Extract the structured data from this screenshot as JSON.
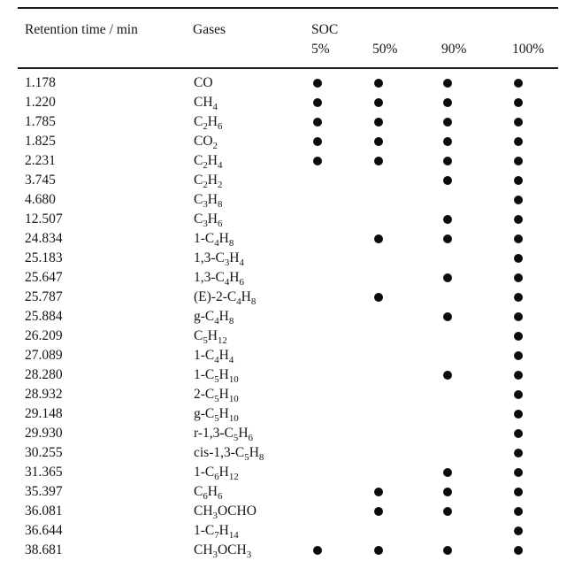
{
  "table": {
    "headers": {
      "retention": "Retention time / min",
      "gases": "Gases",
      "soc": "SOC",
      "soc_levels": [
        "5%",
        "50%",
        "90%",
        "100%"
      ]
    },
    "dot_symbol": "●",
    "text_color": "#161616",
    "rule_color": "#1c1c1c",
    "background_color": "#ffffff",
    "rows": [
      {
        "rt": "1.178",
        "gas": "CO",
        "soc": [
          1,
          1,
          1,
          1
        ]
      },
      {
        "rt": "1.220",
        "gas": "CH_4",
        "soc": [
          1,
          1,
          1,
          1
        ]
      },
      {
        "rt": "1.785",
        "gas": "C_2H_6",
        "soc": [
          1,
          1,
          1,
          1
        ]
      },
      {
        "rt": "1.825",
        "gas": "CO_2",
        "soc": [
          1,
          1,
          1,
          1
        ]
      },
      {
        "rt": "2.231",
        "gas": "C_2H_4",
        "soc": [
          1,
          1,
          1,
          1
        ]
      },
      {
        "rt": "3.745",
        "gas": "C_2H_2",
        "soc": [
          0,
          0,
          1,
          1
        ]
      },
      {
        "rt": "4.680",
        "gas": "C_3H_8",
        "soc": [
          0,
          0,
          0,
          1
        ]
      },
      {
        "rt": "12.507",
        "gas": "C_3H_6",
        "soc": [
          0,
          0,
          1,
          1
        ]
      },
      {
        "rt": "24.834",
        "gas": "1-C_4H_8",
        "soc": [
          0,
          1,
          1,
          1
        ]
      },
      {
        "rt": "25.183",
        "gas": "1,3-C_3H_4",
        "soc": [
          0,
          0,
          0,
          1
        ]
      },
      {
        "rt": "25.647",
        "gas": "1,3-C_4H_6",
        "soc": [
          0,
          0,
          1,
          1
        ]
      },
      {
        "rt": "25.787",
        "gas": "(E)-2-C_4H_8",
        "soc": [
          0,
          1,
          0,
          1
        ]
      },
      {
        "rt": "25.884",
        "gas": "g-C_4H_8",
        "soc": [
          0,
          0,
          1,
          1
        ]
      },
      {
        "rt": "26.209",
        "gas": "C_5H_12",
        "soc": [
          0,
          0,
          0,
          1
        ]
      },
      {
        "rt": "27.089",
        "gas": "1-C_4H_4",
        "soc": [
          0,
          0,
          0,
          1
        ]
      },
      {
        "rt": "28.280",
        "gas": "1-C_5H_10",
        "soc": [
          0,
          0,
          1,
          1
        ]
      },
      {
        "rt": "28.932",
        "gas": "2-C_5H_10",
        "soc": [
          0,
          0,
          0,
          1
        ]
      },
      {
        "rt": "29.148",
        "gas": "g-C_5H_10",
        "soc": [
          0,
          0,
          0,
          1
        ]
      },
      {
        "rt": "29.930",
        "gas": "r-1,3-C_5H_6",
        "soc": [
          0,
          0,
          0,
          1
        ]
      },
      {
        "rt": "30.255",
        "gas": "cis-1,3-C_5H_8",
        "soc": [
          0,
          0,
          0,
          1
        ]
      },
      {
        "rt": "31.365",
        "gas": "1-C_6H_12",
        "soc": [
          0,
          0,
          1,
          1
        ]
      },
      {
        "rt": "35.397",
        "gas": "C_6H_6",
        "soc": [
          0,
          1,
          1,
          1
        ]
      },
      {
        "rt": "36.081",
        "gas": "CH_3OCHO",
        "soc": [
          0,
          1,
          1,
          1
        ]
      },
      {
        "rt": "36.644",
        "gas": "1-C_7H_14",
        "soc": [
          0,
          0,
          0,
          1
        ]
      },
      {
        "rt": "38.681",
        "gas": "CH_3OCH_3",
        "soc": [
          1,
          1,
          1,
          1
        ]
      }
    ]
  }
}
